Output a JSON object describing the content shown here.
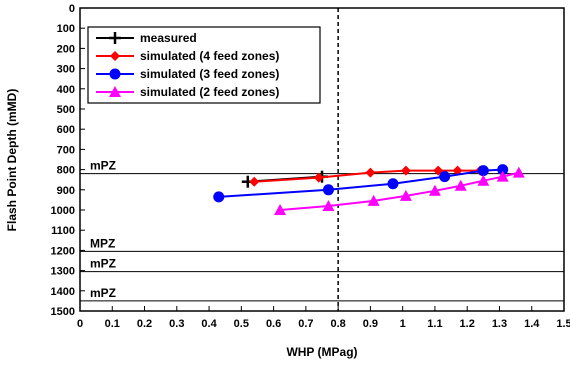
{
  "chart_data": {
    "type": "line",
    "xlabel": "WHP (MPag)",
    "ylabel": "Flash Point Depth (mMD)",
    "xlim": [
      0,
      1.5
    ],
    "ylim": [
      1500,
      0
    ],
    "y_inverted": true,
    "x_ticks": [
      "0",
      "0.1",
      "0.2",
      "0.3",
      "0.4",
      "0.5",
      "0.6",
      "0.7",
      "0.8",
      "0.9",
      "1",
      "1.1",
      "1.2",
      "1.3",
      "1.4",
      "1.5"
    ],
    "x_tick_values": [
      0,
      0.1,
      0.2,
      0.3,
      0.4,
      0.5,
      0.6,
      0.7,
      0.8,
      0.9,
      1.0,
      1.1,
      1.2,
      1.3,
      1.4,
      1.5
    ],
    "y_ticks": [
      "0",
      "100",
      "200",
      "300",
      "400",
      "500",
      "600",
      "700",
      "800",
      "900",
      "1000",
      "1100",
      "1200",
      "1300",
      "1400",
      "1500"
    ],
    "y_tick_values": [
      0,
      100,
      200,
      300,
      400,
      500,
      600,
      700,
      800,
      900,
      1000,
      1100,
      1200,
      1300,
      1400,
      1500
    ],
    "grid": false,
    "legend_position": "top-left",
    "vertical_reference": {
      "x": 0.8,
      "style": "dashed"
    },
    "zones": [
      {
        "label": "mPZ",
        "y": 820
      },
      {
        "label": "MPZ",
        "y": 1205
      },
      {
        "label": "mPZ",
        "y": 1305
      },
      {
        "label": "mPZ",
        "y": 1450
      }
    ],
    "series": [
      {
        "name": "measured",
        "color": "#000000",
        "marker": "plus",
        "x": [
          0.52,
          0.75
        ],
        "y": [
          860,
          835
        ]
      },
      {
        "name": "simulated (4 feed zones)",
        "color": "#ff0000",
        "marker": "diamond",
        "x": [
          0.54,
          0.74,
          0.9,
          1.01,
          1.11,
          1.17,
          1.24
        ],
        "y": [
          860,
          840,
          815,
          805,
          805,
          805,
          805
        ]
      },
      {
        "name": "simulated (3 feed zones)",
        "color": "#0000ff",
        "marker": "circle",
        "x": [
          0.43,
          0.77,
          0.97,
          1.13,
          1.25,
          1.31
        ],
        "y": [
          935,
          900,
          870,
          835,
          805,
          800
        ]
      },
      {
        "name": "simulated (2 feed zones)",
        "color": "#ff00ff",
        "marker": "triangle",
        "x": [
          0.62,
          0.77,
          0.91,
          1.01,
          1.1,
          1.18,
          1.25,
          1.31,
          1.36
        ],
        "y": [
          1000,
          980,
          955,
          930,
          905,
          880,
          855,
          835,
          815
        ]
      }
    ]
  }
}
